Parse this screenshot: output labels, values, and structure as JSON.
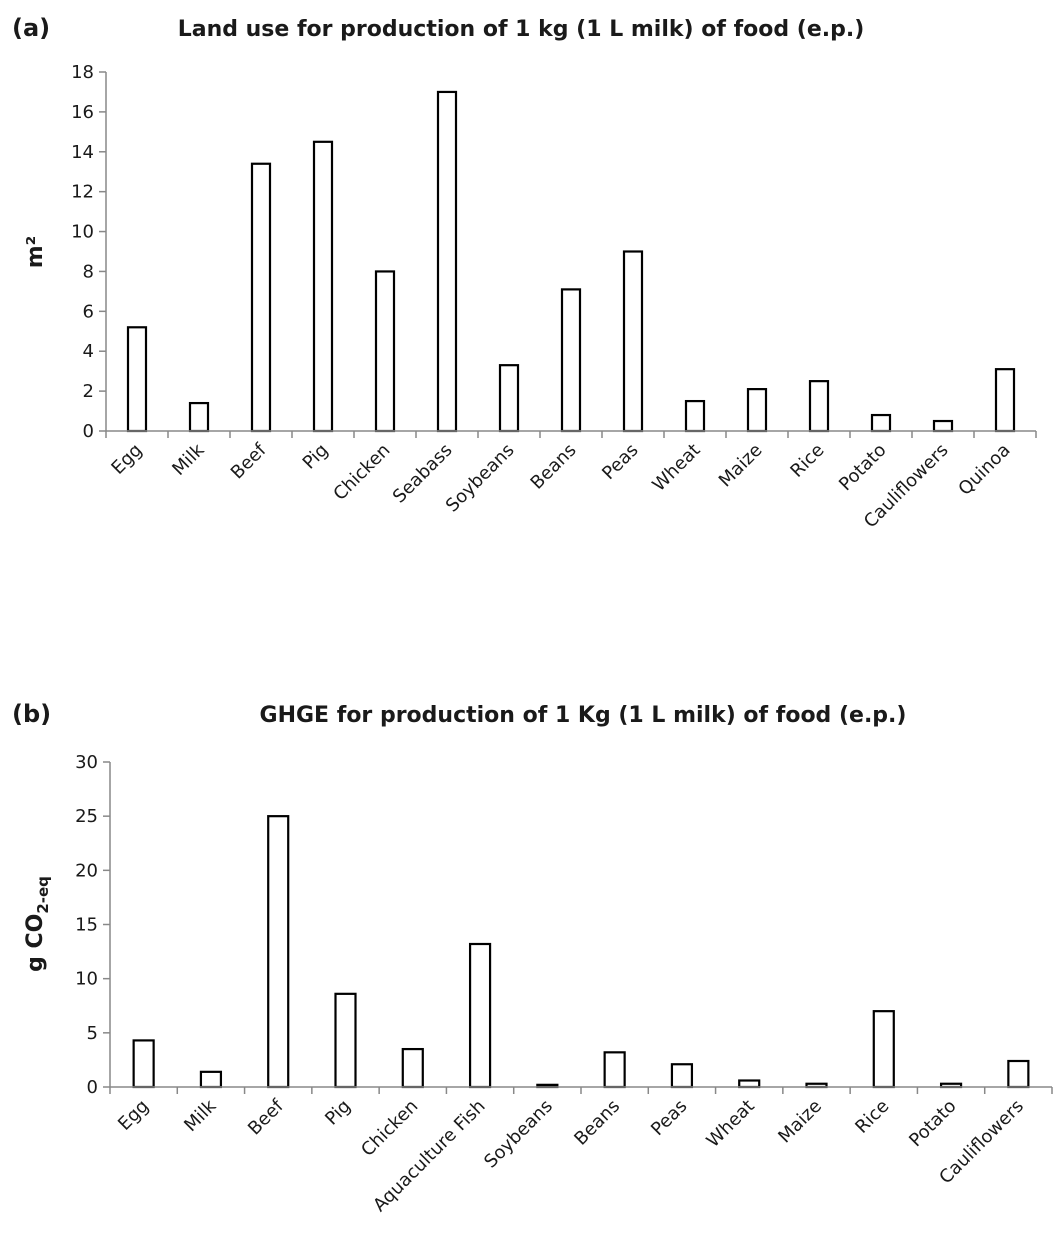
{
  "chart_data": [
    {
      "type": "bar",
      "panel_label": "(a)",
      "title": "Land use for production of 1 kg (1 L milk) of food (e.p.)",
      "ylabel": "m²",
      "xlabel": "",
      "ylim": [
        0,
        18
      ],
      "yticks": [
        0,
        2,
        4,
        6,
        8,
        10,
        12,
        14,
        16,
        18
      ],
      "categories": [
        "Egg",
        "Milk",
        "Beef",
        "Pig",
        "Chicken",
        "Seabass",
        "Soybeans",
        "Beans",
        "Peas",
        "Wheat",
        "Maize",
        "Rice",
        "Potato",
        "Cauliflowers",
        "Quinoa"
      ],
      "values": [
        5.2,
        1.4,
        13.4,
        14.5,
        8.0,
        17.0,
        3.3,
        7.1,
        9.0,
        1.5,
        2.1,
        2.5,
        0.8,
        0.5,
        3.1
      ],
      "grid": false,
      "legend": "none"
    },
    {
      "type": "bar",
      "panel_label": "(b)",
      "title": "GHGE for production of 1 Kg (1 L milk) of food (e.p.)",
      "ylabel": "g CO2-eq",
      "ylabel_main": "g CO",
      "ylabel_sub": "2-eq",
      "xlabel": "",
      "ylim": [
        0,
        30
      ],
      "yticks": [
        0,
        5,
        10,
        15,
        20,
        25,
        30
      ],
      "categories": [
        "Egg",
        "Milk",
        "Beef",
        "Pig",
        "Chicken",
        "Aquaculture Fish",
        "Soybeans",
        "Beans",
        "Peas",
        "Wheat",
        "Maize",
        "Rice",
        "Potato",
        "Cauliflowers"
      ],
      "values": [
        4.3,
        1.4,
        25.0,
        8.6,
        3.5,
        13.2,
        0.2,
        3.2,
        2.1,
        0.6,
        0.3,
        7.0,
        0.3,
        2.4
      ],
      "grid": false,
      "legend": "none"
    }
  ]
}
